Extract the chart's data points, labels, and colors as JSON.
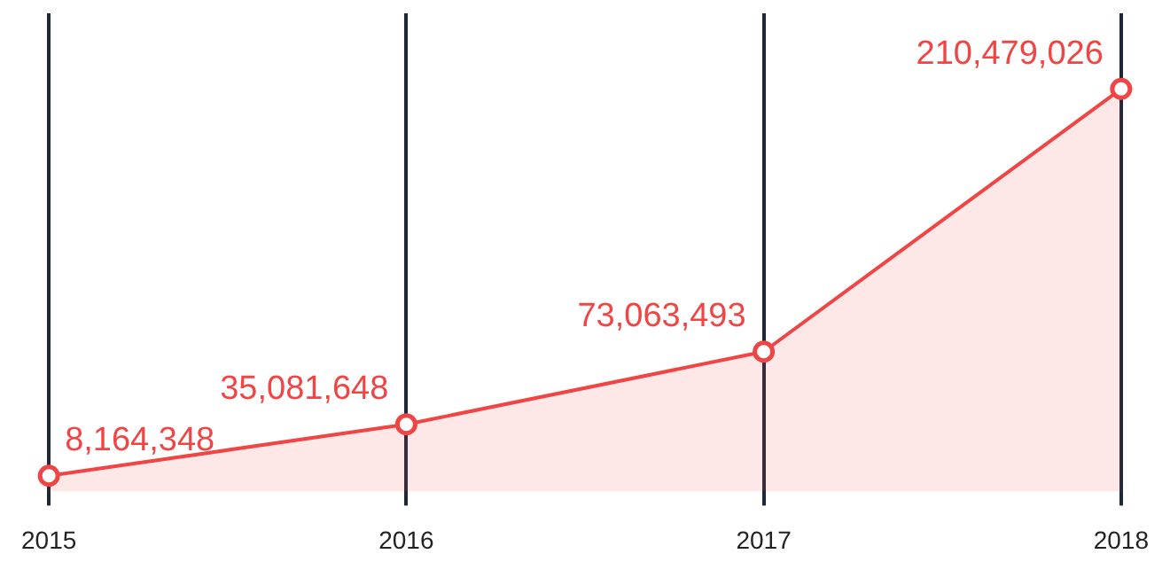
{
  "chart_data": {
    "type": "area",
    "categories": [
      "2015",
      "2016",
      "2017",
      "2018"
    ],
    "series": [
      {
        "color": "#f04545",
        "values": [
          8164348,
          35081648,
          73063493,
          210479026
        ],
        "value_labels": [
          "8,164,348",
          "35,081,648",
          "73,063,493",
          "210,479,026"
        ]
      }
    ],
    "tick_labels": "x",
    "grid": "x",
    "marker": "circle",
    "legend": false
  }
}
